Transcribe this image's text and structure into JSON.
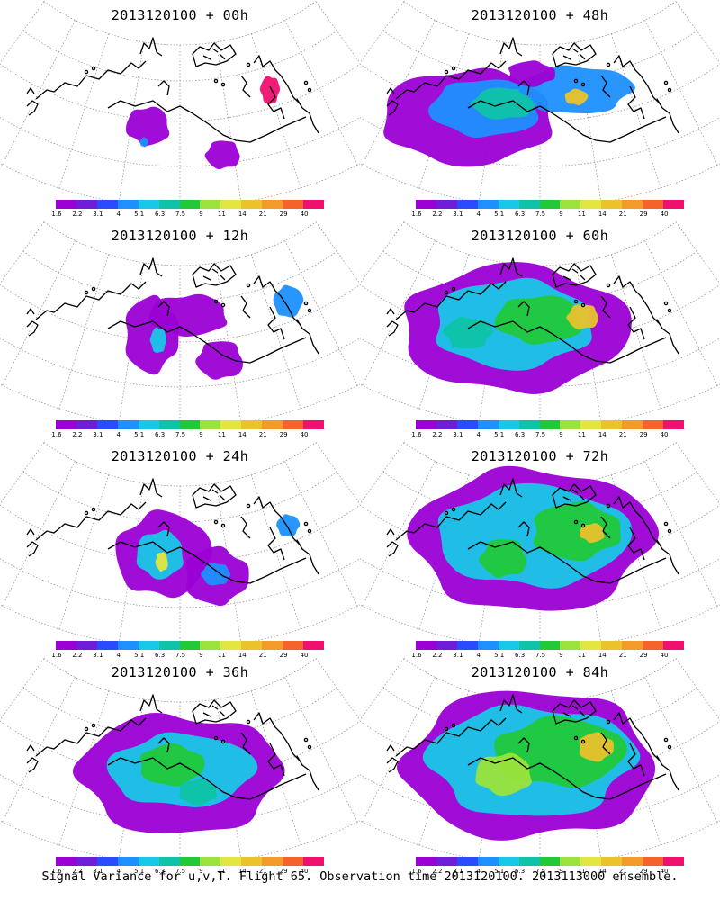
{
  "panels": [
    {
      "title": "2013120100  +  00h"
    },
    {
      "title": "2013120100  +  48h"
    },
    {
      "title": "2013120100  +  12h"
    },
    {
      "title": "2013120100  +  60h"
    },
    {
      "title": "2013120100  +  24h"
    },
    {
      "title": "2013120100  +  72h"
    },
    {
      "title": "2013120100  +  36h"
    },
    {
      "title": "2013120100  +  84h"
    }
  ],
  "colorbar": {
    "ticks": [
      "1.6",
      "2.2",
      "3.1",
      "4",
      "5.1",
      "6.3",
      "7.5",
      "9",
      "11",
      "14",
      "21",
      "29",
      "40"
    ],
    "colors": [
      "#9b00d4",
      "#6e1fd6",
      "#2a4bff",
      "#1e90ff",
      "#19c8e8",
      "#0fc3a8",
      "#22c83a",
      "#9be33c",
      "#e3e640",
      "#e9c22c",
      "#f39b2a",
      "#f5622a",
      "#f01070"
    ]
  },
  "caption": "Signal Variance for u,v,T. Flight 65. Observation time 2013120100. 2013113000 ensemble."
}
